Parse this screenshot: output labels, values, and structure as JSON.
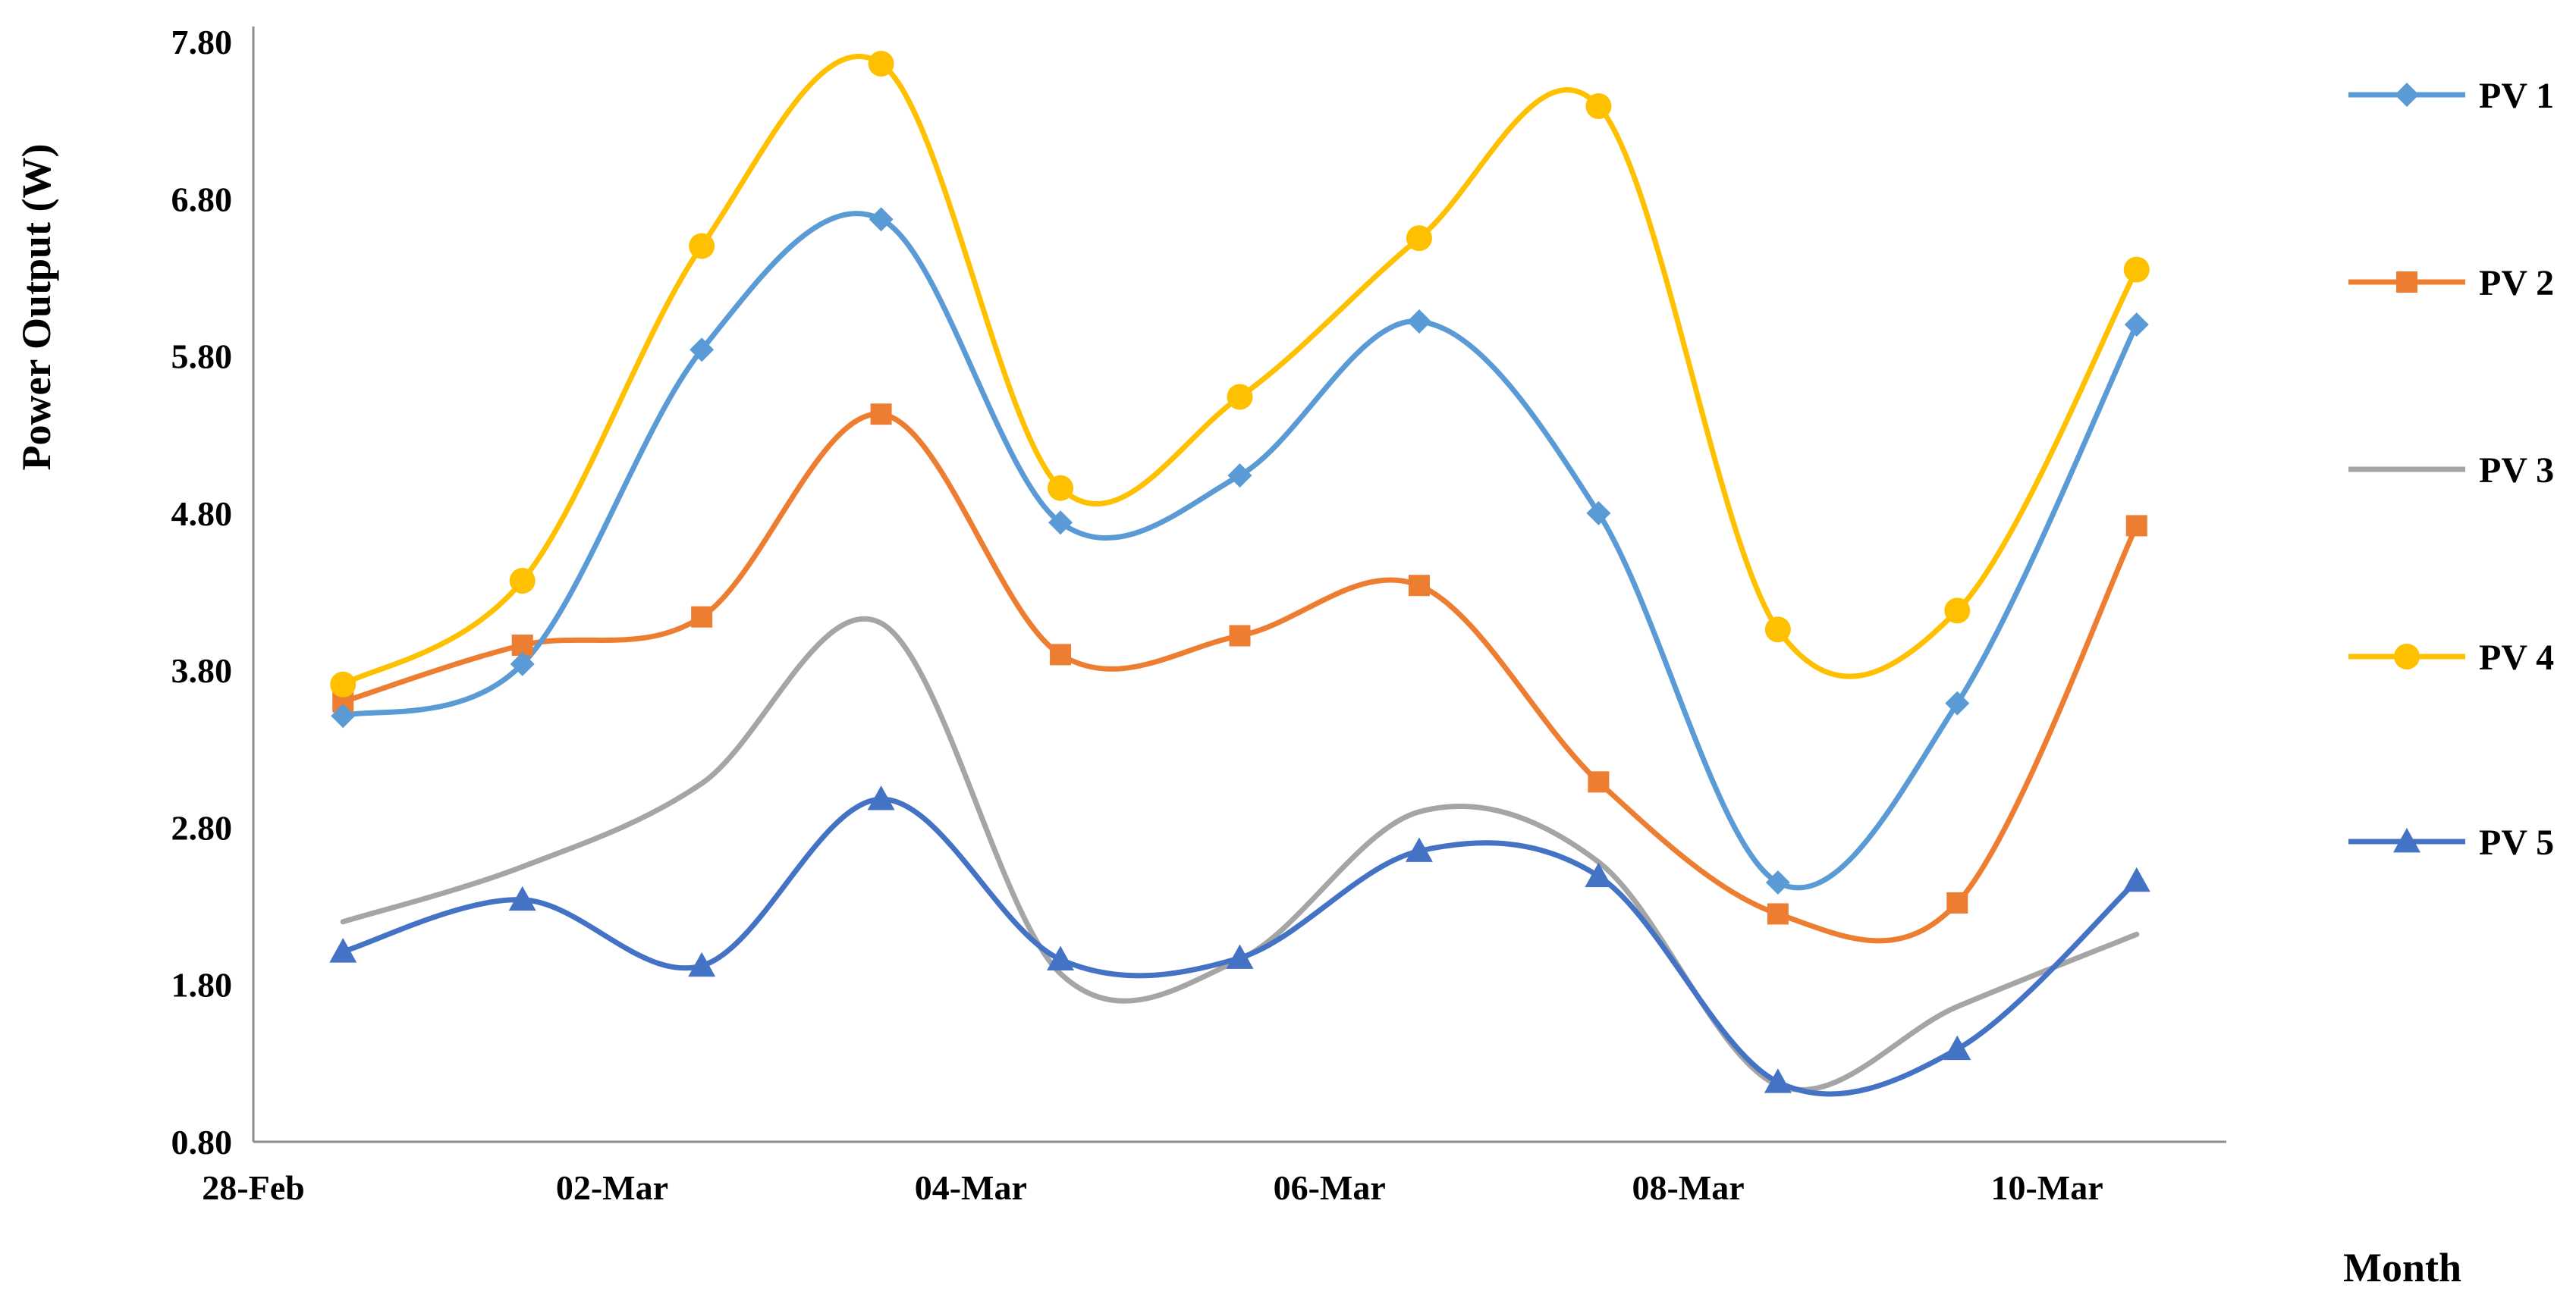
{
  "chart_data": {
    "type": "line",
    "title": "",
    "xlabel": "Month",
    "ylabel": "Power Output (W)",
    "ylim": [
      0.8,
      7.8
    ],
    "yticks": [
      "0.80",
      "1.80",
      "2.80",
      "3.80",
      "4.80",
      "5.80",
      "6.80",
      "7.80"
    ],
    "xticks": [
      {
        "label": "28-Feb",
        "pos": 0
      },
      {
        "label": "02-Mar",
        "pos": 2
      },
      {
        "label": "04-Mar",
        "pos": 4
      },
      {
        "label": "06-Mar",
        "pos": 6
      },
      {
        "label": "08-Mar",
        "pos": 8
      },
      {
        "label": "10-Mar",
        "pos": 10
      }
    ],
    "x": [
      0.5,
      1.5,
      2.5,
      3.5,
      4.5,
      5.5,
      6.5,
      7.5,
      8.5,
      9.5,
      10.5
    ],
    "legend_position": "right",
    "series": [
      {
        "name": "PV 1",
        "color": "#5B9BD5",
        "marker": "diamond",
        "values": [
          3.51,
          3.84,
          5.84,
          6.67,
          4.74,
          5.04,
          6.02,
          4.8,
          2.45,
          3.59,
          6.0
        ]
      },
      {
        "name": "PV 2",
        "color": "#ED7D31",
        "marker": "square",
        "values": [
          3.6,
          3.96,
          4.14,
          5.43,
          3.9,
          4.02,
          4.34,
          3.09,
          2.25,
          2.32,
          4.72
        ]
      },
      {
        "name": "PV 3",
        "color": "#A5A5A5",
        "marker": "none",
        "values": [
          2.2,
          2.55,
          3.08,
          4.1,
          1.87,
          1.96,
          2.9,
          2.58,
          1.16,
          1.66,
          2.12
        ]
      },
      {
        "name": "PV 4",
        "color": "#FFC000",
        "marker": "circle",
        "values": [
          3.71,
          4.37,
          6.5,
          7.66,
          4.96,
          5.54,
          6.55,
          7.39,
          4.06,
          4.18,
          6.35
        ]
      },
      {
        "name": "PV 5",
        "color": "#4472C4",
        "marker": "triangle",
        "values": [
          2.01,
          2.34,
          1.92,
          2.98,
          1.96,
          1.97,
          2.65,
          2.49,
          1.18,
          1.39,
          2.46
        ]
      }
    ]
  }
}
